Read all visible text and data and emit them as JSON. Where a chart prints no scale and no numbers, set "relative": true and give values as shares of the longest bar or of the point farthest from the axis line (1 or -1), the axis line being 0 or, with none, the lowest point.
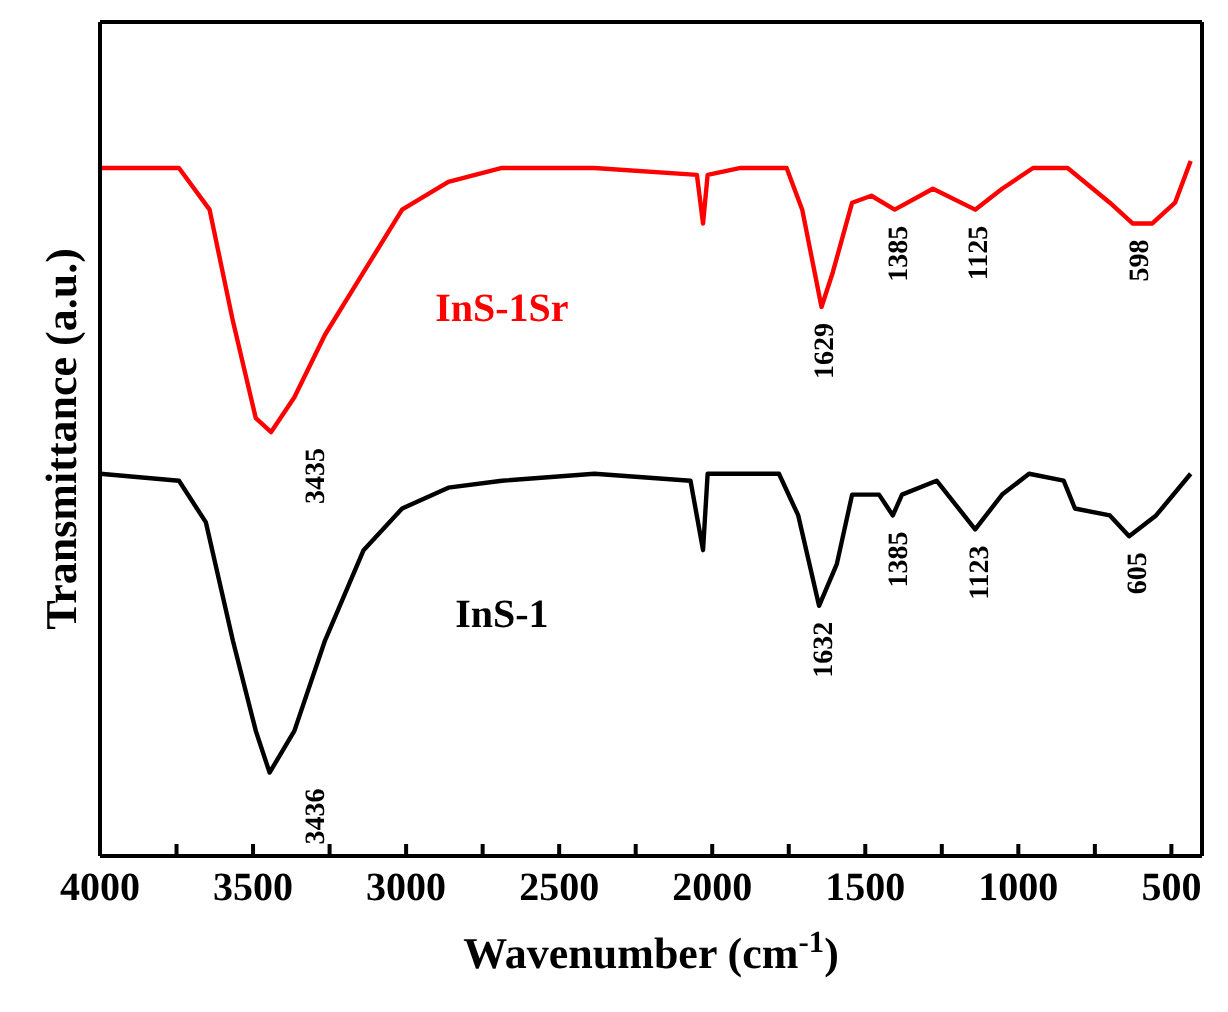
{
  "chart_data": {
    "type": "line",
    "relative": true,
    "xlabel": "Wavenumber (cm$^{-1}$)",
    "ylabel": "Transmittance  (a.u.)",
    "xlim": [
      4000,
      400
    ],
    "xticks": [
      4000,
      {
        "value": 3750,
        "label": null
      },
      3500,
      {
        "value": 3250,
        "label": null
      },
      3000,
      {
        "value": 2750,
        "label": null
      },
      2500,
      {
        "value": 2250,
        "label": null
      },
      2000,
      {
        "value": 1750,
        "label": null
      },
      1500,
      {
        "value": 1250,
        "label": null
      },
      1000,
      {
        "value": 750,
        "label": null
      },
      500
    ],
    "marker": "none",
    "line_style": "solid",
    "series": [
      {
        "name": "InS-1Sr",
        "color": "#ff0000",
        "x": [
          4000,
          3742,
          3642,
          3566,
          3491,
          3441,
          3365,
          3265,
          3139,
          3013,
          2862,
          2687,
          2385,
          2050,
          2030,
          2015,
          1907,
          1757,
          1706,
          1643,
          1606,
          1543,
          1480,
          1404,
          1279,
          1141,
          1053,
          952,
          839,
          701,
          626,
          563,
          488,
          437
        ],
        "values": [
          0.99,
          0.99,
          0.93,
          0.77,
          0.63,
          0.61,
          0.66,
          0.75,
          0.84,
          0.93,
          0.97,
          0.99,
          0.99,
          0.98,
          0.91,
          0.98,
          0.99,
          0.99,
          0.93,
          0.79,
          0.84,
          0.94,
          0.95,
          0.93,
          0.96,
          0.93,
          0.96,
          0.99,
          0.99,
          0.94,
          0.91,
          0.91,
          0.94,
          1.0
        ]
      },
      {
        "name": "InS-1",
        "color": "#000000",
        "x": [
          4000,
          3742,
          3654,
          3566,
          3491,
          3446,
          3365,
          3265,
          3139,
          3013,
          2862,
          2687,
          2385,
          2071,
          2030,
          2015,
          1782,
          1719,
          1651,
          1593,
          1543,
          1455,
          1410,
          1380,
          1267,
          1141,
          1053,
          965,
          852,
          815,
          701,
          638,
          550,
          437
        ],
        "values": [
          0.55,
          0.54,
          0.48,
          0.31,
          0.18,
          0.12,
          0.18,
          0.31,
          0.44,
          0.5,
          0.53,
          0.54,
          0.55,
          0.54,
          0.44,
          0.55,
          0.55,
          0.49,
          0.36,
          0.42,
          0.52,
          0.52,
          0.49,
          0.52,
          0.54,
          0.47,
          0.52,
          0.55,
          0.54,
          0.5,
          0.49,
          0.46,
          0.49,
          0.55
        ]
      }
    ],
    "annotations": [
      {
        "text": "3435",
        "x": 3435,
        "y": 0.61
      },
      {
        "text": "1629",
        "x": 1629,
        "y": 0.79
      },
      {
        "text": "1385",
        "x": 1385,
        "y": 0.93
      },
      {
        "text": "1125",
        "x": 1125,
        "y": 0.93
      },
      {
        "text": "598",
        "x": 598,
        "y": 0.91
      },
      {
        "text": "3436",
        "x": 3436,
        "y": 0.12
      },
      {
        "text": "1632",
        "x": 1632,
        "y": 0.36
      },
      {
        "text": "1385",
        "x": 1385,
        "y": 0.49
      },
      {
        "text": "1123",
        "x": 1123,
        "y": 0.47
      },
      {
        "text": "605",
        "x": 605,
        "y": 0.46
      }
    ]
  }
}
